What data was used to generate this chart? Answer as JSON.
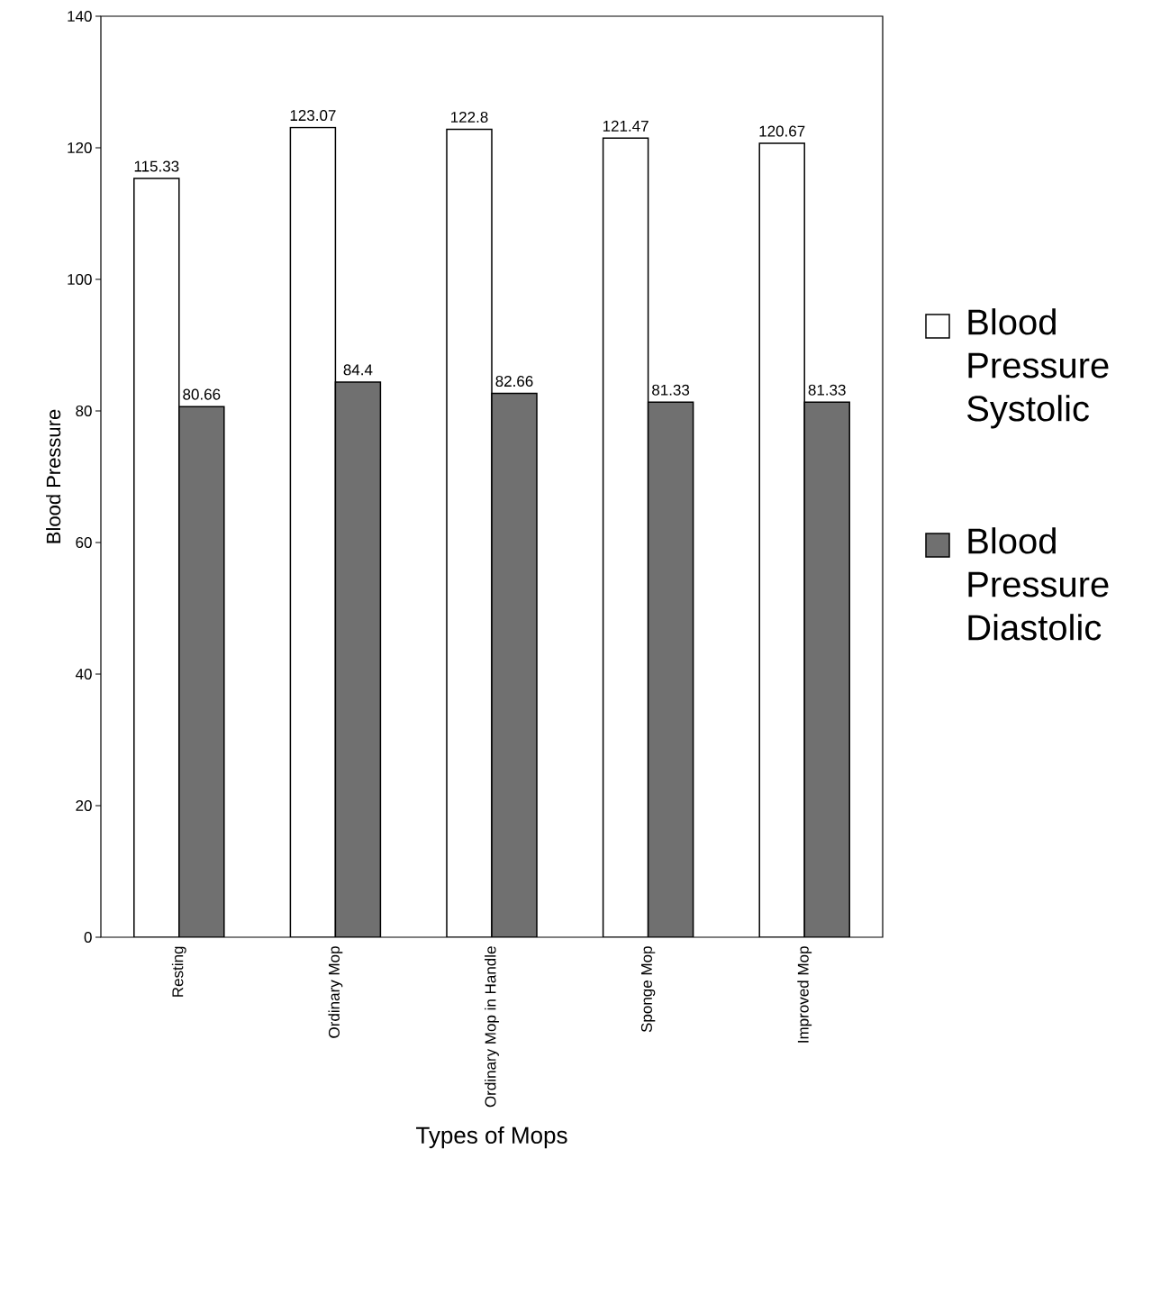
{
  "chart_data": {
    "type": "bar",
    "xlabel": "Types of Mops",
    "ylabel": "Blood Pressure",
    "categories": [
      "Resting",
      "Ordinary Mop",
      "Ordinary Mop in Handle",
      "Sponge Mop",
      "Improved Mop"
    ],
    "series": [
      {
        "name": "Blood Pressure Systolic",
        "color": "#ffffff",
        "values": [
          115.33,
          123.07,
          122.8,
          121.47,
          120.67
        ]
      },
      {
        "name": "Blood Pressure Diastolic",
        "color": "#707070",
        "values": [
          80.66,
          84.4,
          82.66,
          81.33,
          81.33
        ]
      }
    ],
    "ylim": [
      0,
      140
    ],
    "yticks": [
      0,
      20,
      40,
      60,
      80,
      100,
      120,
      140
    ],
    "data_labels": true,
    "legend": "right",
    "grid": false
  }
}
